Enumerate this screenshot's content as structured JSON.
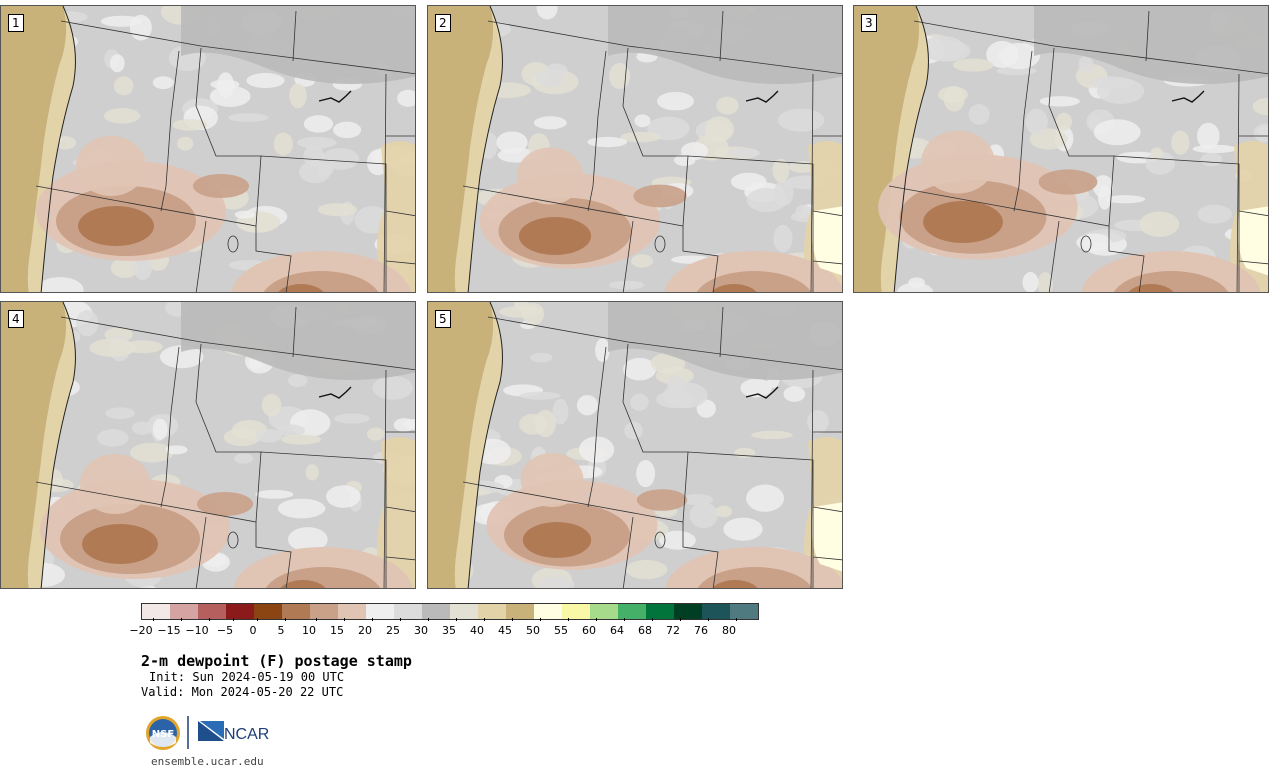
{
  "panels": [
    {
      "label": "1"
    },
    {
      "label": "2"
    },
    {
      "label": "3"
    },
    {
      "label": "4"
    },
    {
      "label": "5"
    }
  ],
  "colorbar": {
    "colors": [
      "#f2e8e6",
      "#d6a3a3",
      "#b65f5f",
      "#8b1a1a",
      "#8b4513",
      "#b07a55",
      "#c9a088",
      "#e0c4b4",
      "#efefef",
      "#dcdcdc",
      "#bababa",
      "#e3e1d4",
      "#e3d3a8",
      "#c8b279",
      "#fffde2",
      "#f8f8a6",
      "#a7db8c",
      "#45b068",
      "#00743a",
      "#003f24",
      "#1d5459",
      "#4f7b80"
    ],
    "ticks": [
      "−20",
      "−15",
      "−10",
      "−5",
      "0",
      "5",
      "10",
      "15",
      "20",
      "25",
      "30",
      "35",
      "40",
      "45",
      "50",
      "55",
      "60",
      "64",
      "68",
      "72",
      "76",
      "80"
    ]
  },
  "title": "2-m dewpoint (F) postage stamp",
  "init": "Init: Sun 2024-05-19 00 UTC",
  "valid": "Valid: Mon 2024-05-20 22 UTC",
  "logos": {
    "nsf": "NSF",
    "ncar": "NCAR"
  },
  "site": "ensemble.ucar.edu"
}
